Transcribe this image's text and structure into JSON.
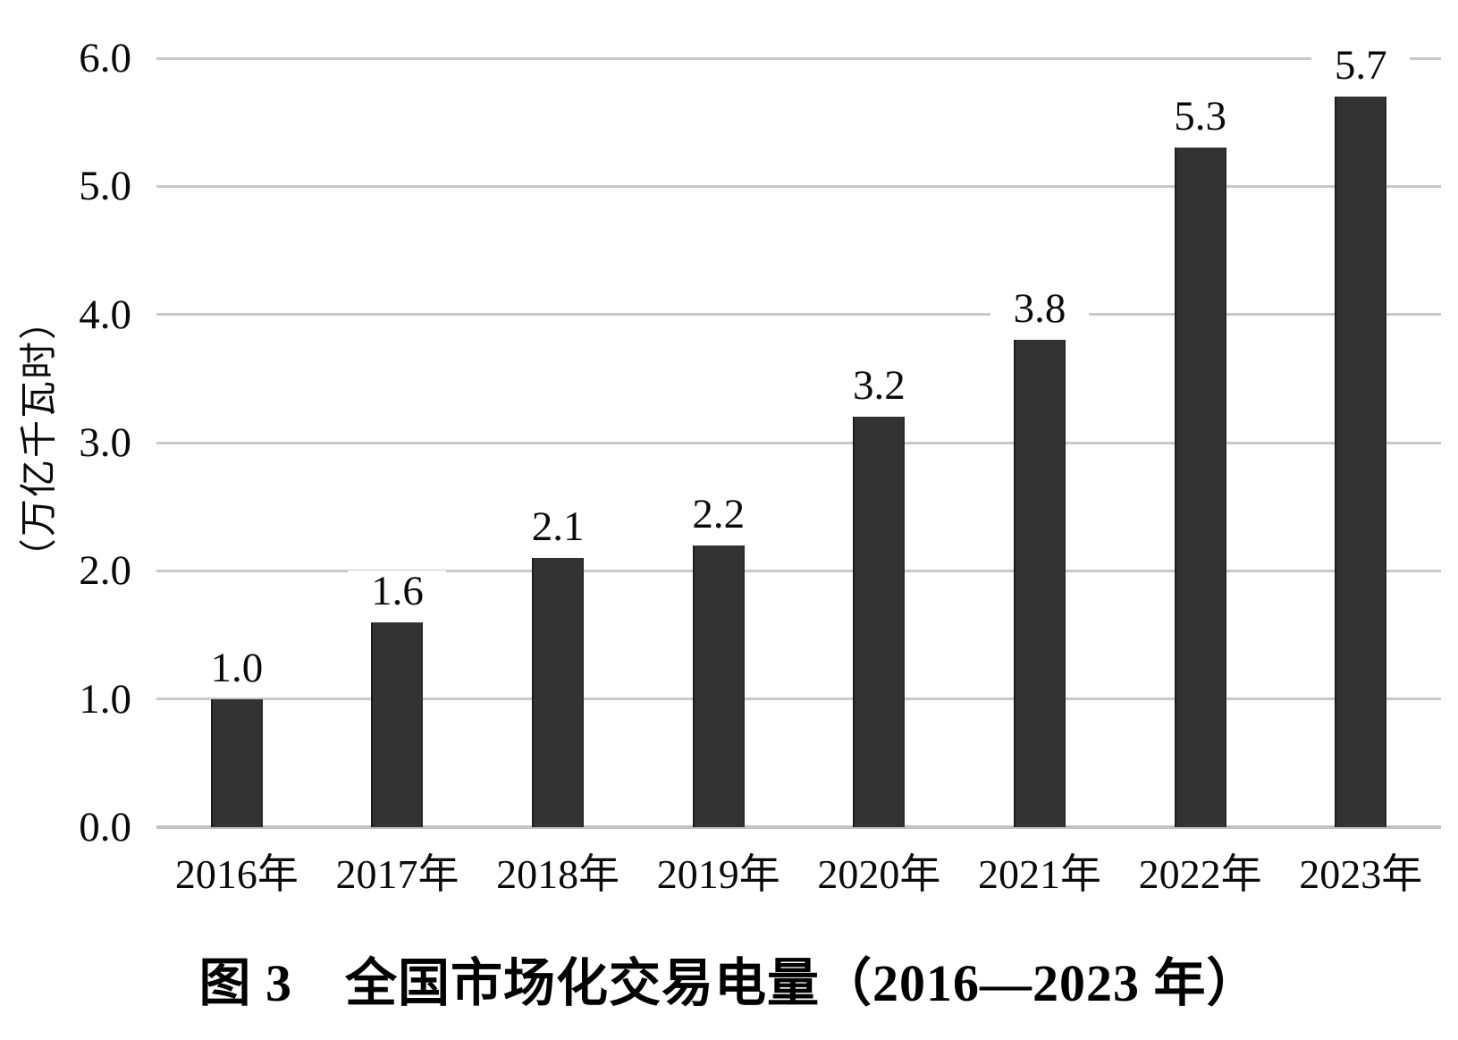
{
  "figure": {
    "caption": "图 3　全国市场化交易电量（2016—2023 年）"
  },
  "chart_data": {
    "type": "bar",
    "title": "图 3　全国市场化交易电量（2016—2023 年）",
    "categories": [
      "2016年",
      "2017年",
      "2018年",
      "2019年",
      "2020年",
      "2021年",
      "2022年",
      "2023年"
    ],
    "values": [
      1.0,
      1.6,
      2.1,
      2.2,
      3.2,
      3.8,
      5.3,
      5.7
    ],
    "value_labels": [
      "1.0",
      "1.6",
      "2.1",
      "2.2",
      "3.2",
      "3.8",
      "5.3",
      "5.7"
    ],
    "xlabel": "",
    "ylabel": "（万亿千瓦时）",
    "ylim": [
      0,
      6
    ],
    "ytick_labels": [
      "0.0",
      "1.0",
      "2.0",
      "3.0",
      "4.0",
      "5.0",
      "6.0"
    ],
    "grid": "horizontal-only",
    "legend": "none",
    "bar_color": "#333333",
    "gridline_color": "#c9c9c9"
  }
}
